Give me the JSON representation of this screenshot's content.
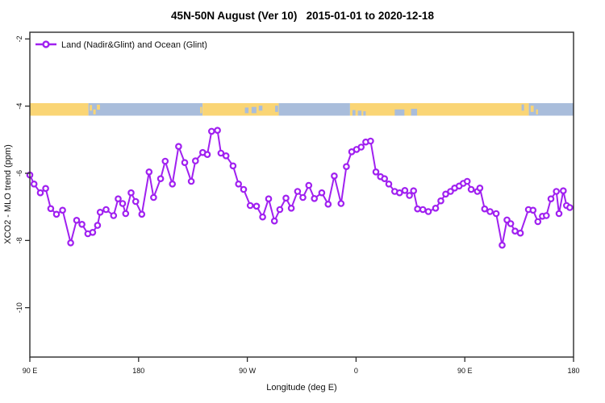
{
  "chart": {
    "title": "45N-50N August (Ver 10)   2015-01-01 to 2020-12-18",
    "xlabel": "Longitude (deg E)",
    "ylabel": "XCO2 - MLO trend (ppm)",
    "legend_label": "Land (Nadir&Glint) and Ocean (Glint)"
  },
  "colors": {
    "series": "#A020F0",
    "land": "#FAD575",
    "ocean": "#A9BDDB",
    "axis": "#2b2b2b"
  },
  "chart_data": {
    "type": "line",
    "title": "45N-50N August (Ver 10)   2015-01-01 to 2020-12-18",
    "xlabel": "Longitude (deg E)",
    "ylabel": "XCO2 - MLO trend (ppm)",
    "legend": [
      {
        "label": "Land (Nadir&Glint) and Ocean (Glint)",
        "color": "#A020F0",
        "marker": "open-circle"
      }
    ],
    "legend_position": "top-left",
    "grid": false,
    "x_axis": {
      "range": [
        90,
        540
      ],
      "ticks": [
        {
          "pos": 90,
          "label": "90 E"
        },
        {
          "pos": 180,
          "label": "180"
        },
        {
          "pos": 270,
          "label": "90 W"
        },
        {
          "pos": 360,
          "label": "0"
        },
        {
          "pos": 450,
          "label": "90 E"
        },
        {
          "pos": 540,
          "label": "180"
        }
      ]
    },
    "y_axis": {
      "range": [
        -11.5,
        -1.8
      ],
      "ticks": [
        {
          "pos": -2,
          "label": "-2"
        },
        {
          "pos": -4,
          "label": "-4"
        },
        {
          "pos": -6,
          "label": "-6"
        },
        {
          "pos": -8,
          "label": "-8"
        },
        {
          "pos": -10,
          "label": "-10"
        }
      ]
    },
    "map_band": {
      "description": "land/ocean strip for 45N-50N at value ~ -4.1 ppm",
      "land_color": "#FAD575",
      "ocean_color": "#A9BDDB",
      "segments": [
        {
          "from": 90,
          "to": 138.5,
          "type": "land"
        },
        {
          "from": 138.5,
          "to": 233,
          "type": "ocean"
        },
        {
          "from": 233,
          "to": 296,
          "type": "land"
        },
        {
          "from": 296,
          "to": 355,
          "type": "ocean"
        },
        {
          "from": 355,
          "to": 503,
          "type": "land"
        },
        {
          "from": 503,
          "to": 540,
          "type": "ocean"
        }
      ],
      "speckles": [
        {
          "lon": 139.5,
          "w": 2,
          "y": 0.15,
          "h": 0.45,
          "type": "land"
        },
        {
          "lon": 142.5,
          "w": 2,
          "y": 0.5,
          "h": 0.4,
          "type": "land"
        },
        {
          "lon": 145.5,
          "w": 2.5,
          "y": 0.12,
          "h": 0.4,
          "type": "land"
        },
        {
          "lon": 231,
          "w": 1.5,
          "y": 0.3,
          "h": 0.5,
          "type": "land"
        },
        {
          "lon": 268,
          "w": 3,
          "y": 0.35,
          "h": 0.45,
          "type": "ocean"
        },
        {
          "lon": 273.5,
          "w": 4,
          "y": 0.3,
          "h": 0.5,
          "type": "ocean"
        },
        {
          "lon": 279.5,
          "w": 3,
          "y": 0.2,
          "h": 0.4,
          "type": "ocean"
        },
        {
          "lon": 293,
          "w": 2.5,
          "y": 0.2,
          "h": 0.5,
          "type": "ocean"
        },
        {
          "lon": 357,
          "w": 2.5,
          "y": 0.55,
          "h": 0.45,
          "type": "ocean"
        },
        {
          "lon": 361.5,
          "w": 3,
          "y": 0.6,
          "h": 0.4,
          "type": "ocean"
        },
        {
          "lon": 366,
          "w": 2,
          "y": 0.65,
          "h": 0.35,
          "type": "ocean"
        },
        {
          "lon": 392,
          "w": 8,
          "y": 0.5,
          "h": 0.5,
          "type": "ocean"
        },
        {
          "lon": 405.5,
          "w": 5,
          "y": 0.45,
          "h": 0.55,
          "type": "ocean"
        },
        {
          "lon": 497,
          "w": 2,
          "y": 0.1,
          "h": 0.5,
          "type": "ocean"
        },
        {
          "lon": 504.5,
          "w": 2.5,
          "y": 0.2,
          "h": 0.5,
          "type": "land"
        },
        {
          "lon": 509,
          "w": 1.5,
          "y": 0.5,
          "h": 0.4,
          "type": "land"
        }
      ]
    },
    "series": [
      {
        "name": "Land (Nadir&Glint) and Ocean (Glint)",
        "color": "#A020F0",
        "marker": "open-circle",
        "points": [
          [
            90.0,
            -6.05
          ],
          [
            93.5,
            -6.32
          ],
          [
            98.7,
            -6.58
          ],
          [
            103.1,
            -6.45
          ],
          [
            107.3,
            -7.05
          ],
          [
            112.0,
            -7.22
          ],
          [
            117.1,
            -7.1
          ],
          [
            123.8,
            -8.07
          ],
          [
            128.7,
            -7.4
          ],
          [
            133.1,
            -7.52
          ],
          [
            138.0,
            -7.8
          ],
          [
            142.0,
            -7.76
          ],
          [
            146.0,
            -7.55
          ],
          [
            148.2,
            -7.16
          ],
          [
            153.1,
            -7.08
          ],
          [
            159.3,
            -7.26
          ],
          [
            163.1,
            -6.76
          ],
          [
            166.8,
            -6.9
          ],
          [
            169.3,
            -7.2
          ],
          [
            173.8,
            -6.58
          ],
          [
            177.6,
            -6.84
          ],
          [
            182.7,
            -7.22
          ],
          [
            188.7,
            -5.96
          ],
          [
            192.4,
            -6.72
          ],
          [
            198.2,
            -6.16
          ],
          [
            202.0,
            -5.64
          ],
          [
            208.0,
            -6.32
          ],
          [
            213.1,
            -5.2
          ],
          [
            218.2,
            -5.68
          ],
          [
            223.6,
            -6.24
          ],
          [
            227.1,
            -5.63
          ],
          [
            233.1,
            -5.38
          ],
          [
            236.9,
            -5.44
          ],
          [
            240.4,
            -4.75
          ],
          [
            245.3,
            -4.72
          ],
          [
            248.2,
            -5.4
          ],
          [
            252.4,
            -5.48
          ],
          [
            258.2,
            -5.78
          ],
          [
            262.7,
            -6.32
          ],
          [
            266.9,
            -6.48
          ],
          [
            272.4,
            -6.96
          ],
          [
            277.6,
            -6.98
          ],
          [
            282.7,
            -7.3
          ],
          [
            287.6,
            -6.76
          ],
          [
            292.4,
            -7.42
          ],
          [
            296.9,
            -7.08
          ],
          [
            302.0,
            -6.74
          ],
          [
            306.4,
            -7.04
          ],
          [
            311.6,
            -6.54
          ],
          [
            316.0,
            -6.72
          ],
          [
            320.9,
            -6.36
          ],
          [
            325.5,
            -6.75
          ],
          [
            331.6,
            -6.58
          ],
          [
            336.9,
            -6.92
          ],
          [
            342.0,
            -6.08
          ],
          [
            347.6,
            -6.9
          ],
          [
            352.0,
            -5.8
          ],
          [
            356.4,
            -5.36
          ],
          [
            360.4,
            -5.29
          ],
          [
            364.2,
            -5.22
          ],
          [
            368.0,
            -5.07
          ],
          [
            372.0,
            -5.04
          ],
          [
            376.4,
            -5.96
          ],
          [
            380.2,
            -6.1
          ],
          [
            383.6,
            -6.16
          ],
          [
            387.1,
            -6.32
          ],
          [
            392.0,
            -6.54
          ],
          [
            396.0,
            -6.58
          ],
          [
            400.4,
            -6.51
          ],
          [
            404.2,
            -6.66
          ],
          [
            407.6,
            -6.52
          ],
          [
            410.9,
            -7.06
          ],
          [
            415.3,
            -7.08
          ],
          [
            419.8,
            -7.14
          ],
          [
            425.8,
            -7.04
          ],
          [
            430.2,
            -6.82
          ],
          [
            434.2,
            -6.62
          ],
          [
            438.2,
            -6.54
          ],
          [
            441.6,
            -6.44
          ],
          [
            445.3,
            -6.38
          ],
          [
            448.7,
            -6.3
          ],
          [
            452.0,
            -6.24
          ],
          [
            455.3,
            -6.48
          ],
          [
            460.4,
            -6.54
          ],
          [
            462.5,
            -6.44
          ],
          [
            466.4,
            -7.06
          ],
          [
            470.9,
            -7.14
          ],
          [
            476.0,
            -7.2
          ],
          [
            480.9,
            -8.14
          ],
          [
            484.9,
            -7.39
          ],
          [
            488.0,
            -7.5
          ],
          [
            491.6,
            -7.72
          ],
          [
            496.0,
            -7.78
          ],
          [
            502.7,
            -7.08
          ],
          [
            506.5,
            -7.1
          ],
          [
            510.5,
            -7.44
          ],
          [
            514.2,
            -7.28
          ],
          [
            517.5,
            -7.26
          ],
          [
            521.3,
            -6.76
          ],
          [
            525.8,
            -6.54
          ],
          [
            528.0,
            -7.2
          ],
          [
            531.5,
            -6.52
          ],
          [
            534.2,
            -6.96
          ],
          [
            536.9,
            -7.02
          ]
        ]
      }
    ]
  }
}
